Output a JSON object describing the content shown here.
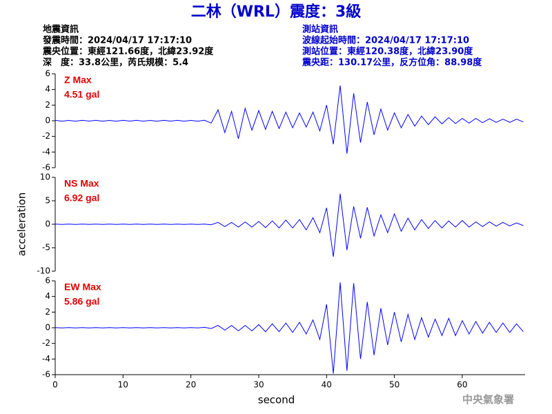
{
  "header": {
    "title": "二林（WRL）震度：3級",
    "event_info": [
      "地震資訊",
      "發震時間：2024/04/17 17:17:10",
      "震央位置：東經121.66度，北緯23.92度",
      "深　度：33.8公里，芮氏規模：5.4"
    ],
    "station_info": [
      "測站資訊",
      "波線起始時間：2024/04/17 17:17:10",
      "測站位置：東經120.38度，北緯23.90度",
      "震央距：130.17公里，反方位角：88.98度"
    ]
  },
  "footer": "中央氣象署",
  "chart_data": [
    {
      "type": "line",
      "label": "Z Max",
      "max_label": "4.51 gal",
      "color": "#0000ff",
      "xlim": [
        0,
        69.26
      ],
      "ylim": [
        -6,
        6
      ],
      "yticks": [
        6,
        4,
        2,
        0,
        -2,
        -4,
        -6
      ],
      "x": [
        0,
        1,
        2,
        3,
        4,
        5,
        6,
        7,
        8,
        9,
        10,
        11,
        12,
        13,
        14,
        15,
        16,
        17,
        18,
        19,
        20,
        21,
        22,
        23,
        24,
        25,
        26,
        27,
        28,
        29,
        30,
        31,
        32,
        33,
        34,
        35,
        36,
        37,
        38,
        39,
        40,
        41,
        42,
        43,
        44,
        45,
        46,
        47,
        48,
        49,
        50,
        51,
        52,
        53,
        54,
        55,
        56,
        57,
        58,
        59,
        60,
        61,
        62,
        63,
        64,
        65,
        66,
        67,
        68,
        69
      ],
      "values": [
        0.05,
        -0.05,
        0.04,
        -0.05,
        0.05,
        -0.04,
        0.05,
        -0.05,
        0.04,
        -0.05,
        0.05,
        -0.04,
        0.05,
        -0.05,
        0.04,
        -0.05,
        0.05,
        -0.04,
        0.05,
        -0.05,
        0.04,
        -0.05,
        0.06,
        -0.3,
        1.4,
        -1.5,
        1.2,
        -2.3,
        1.6,
        -1.2,
        1.3,
        -1.1,
        1.2,
        -1.0,
        1.1,
        -0.9,
        1.0,
        -0.8,
        1.1,
        -1.3,
        2.0,
        -3.0,
        4.51,
        -4.2,
        3.5,
        -2.8,
        2.4,
        -1.8,
        1.5,
        -1.2,
        1.0,
        -0.9,
        0.8,
        -0.7,
        0.6,
        -0.5,
        0.5,
        -0.4,
        0.4,
        -0.35,
        0.3,
        -0.3,
        0.3,
        -0.25,
        0.25,
        -0.2,
        0.2,
        -0.2,
        0.2,
        -0.15
      ]
    },
    {
      "type": "line",
      "label": "NS Max",
      "max_label": "6.92 gal",
      "color": "#0000ff",
      "ylabel": "acceleration",
      "xlim": [
        0,
        69.26
      ],
      "ylim": [
        -10,
        10
      ],
      "yticks": [
        10,
        5,
        0,
        -5,
        -10
      ],
      "x": [
        0,
        1,
        2,
        3,
        4,
        5,
        6,
        7,
        8,
        9,
        10,
        11,
        12,
        13,
        14,
        15,
        16,
        17,
        18,
        19,
        20,
        21,
        22,
        23,
        24,
        25,
        26,
        27,
        28,
        29,
        30,
        31,
        32,
        33,
        34,
        35,
        36,
        37,
        38,
        39,
        40,
        41,
        42,
        43,
        44,
        45,
        46,
        47,
        48,
        49,
        50,
        51,
        52,
        53,
        54,
        55,
        56,
        57,
        58,
        59,
        60,
        61,
        62,
        63,
        64,
        65,
        66,
        67,
        68,
        69
      ],
      "values": [
        0.03,
        -0.03,
        0.03,
        -0.03,
        0.03,
        -0.03,
        0.03,
        -0.03,
        0.03,
        -0.03,
        0.03,
        -0.03,
        0.03,
        -0.03,
        0.03,
        -0.03,
        0.03,
        -0.03,
        0.03,
        -0.03,
        0.03,
        -0.03,
        0.05,
        -0.1,
        0.4,
        -0.5,
        0.4,
        -0.6,
        0.5,
        -0.6,
        0.6,
        -0.7,
        0.7,
        -0.8,
        0.9,
        -0.8,
        1.0,
        -1.2,
        1.4,
        -1.8,
        3.5,
        -6.92,
        6.5,
        -5.5,
        3.8,
        -3.0,
        3.6,
        -2.5,
        2.0,
        -1.8,
        2.2,
        -1.5,
        1.3,
        -1.2,
        1.0,
        -0.9,
        0.8,
        -0.8,
        0.7,
        -0.6,
        0.8,
        -0.6,
        0.5,
        -0.5,
        0.5,
        -0.4,
        0.4,
        -0.35,
        0.3,
        -0.3
      ]
    },
    {
      "type": "line",
      "label": "EW Max",
      "max_label": "5.86 gal",
      "color": "#0000ff",
      "xlabel": "second",
      "xlim": [
        0,
        69.26
      ],
      "ylim": [
        -6,
        6
      ],
      "yticks": [
        6,
        4,
        2,
        0,
        -2,
        -4,
        -6
      ],
      "xticks": [
        0,
        10,
        20,
        30,
        40,
        50,
        60
      ],
      "x": [
        0,
        1,
        2,
        3,
        4,
        5,
        6,
        7,
        8,
        9,
        10,
        11,
        12,
        13,
        14,
        15,
        16,
        17,
        18,
        19,
        20,
        21,
        22,
        23,
        24,
        25,
        26,
        27,
        28,
        29,
        30,
        31,
        32,
        33,
        34,
        35,
        36,
        37,
        38,
        39,
        40,
        41,
        42,
        43,
        44,
        45,
        46,
        47,
        48,
        49,
        50,
        51,
        52,
        53,
        54,
        55,
        56,
        57,
        58,
        59,
        60,
        61,
        62,
        63,
        64,
        65,
        66,
        67,
        68,
        69
      ],
      "values": [
        0.03,
        -0.03,
        0.03,
        -0.03,
        0.03,
        -0.03,
        0.03,
        -0.03,
        0.03,
        -0.03,
        0.03,
        -0.03,
        0.03,
        -0.03,
        0.03,
        -0.03,
        0.03,
        -0.03,
        0.03,
        -0.03,
        0.03,
        -0.03,
        0.05,
        -0.1,
        0.3,
        -0.3,
        0.3,
        -0.4,
        0.3,
        -0.4,
        0.4,
        -0.5,
        0.5,
        -0.5,
        0.6,
        -0.6,
        0.7,
        -0.8,
        1.0,
        -1.5,
        3.0,
        -5.86,
        5.8,
        -5.5,
        5.7,
        -4.0,
        3.3,
        -3.5,
        2.5,
        -2.2,
        2.0,
        -1.8,
        1.7,
        -1.5,
        1.3,
        -1.2,
        1.1,
        -1.0,
        1.2,
        -1.0,
        0.9,
        -0.8,
        0.8,
        -0.7,
        0.7,
        -0.6,
        0.6,
        -0.6,
        0.5,
        -0.5
      ]
    }
  ]
}
